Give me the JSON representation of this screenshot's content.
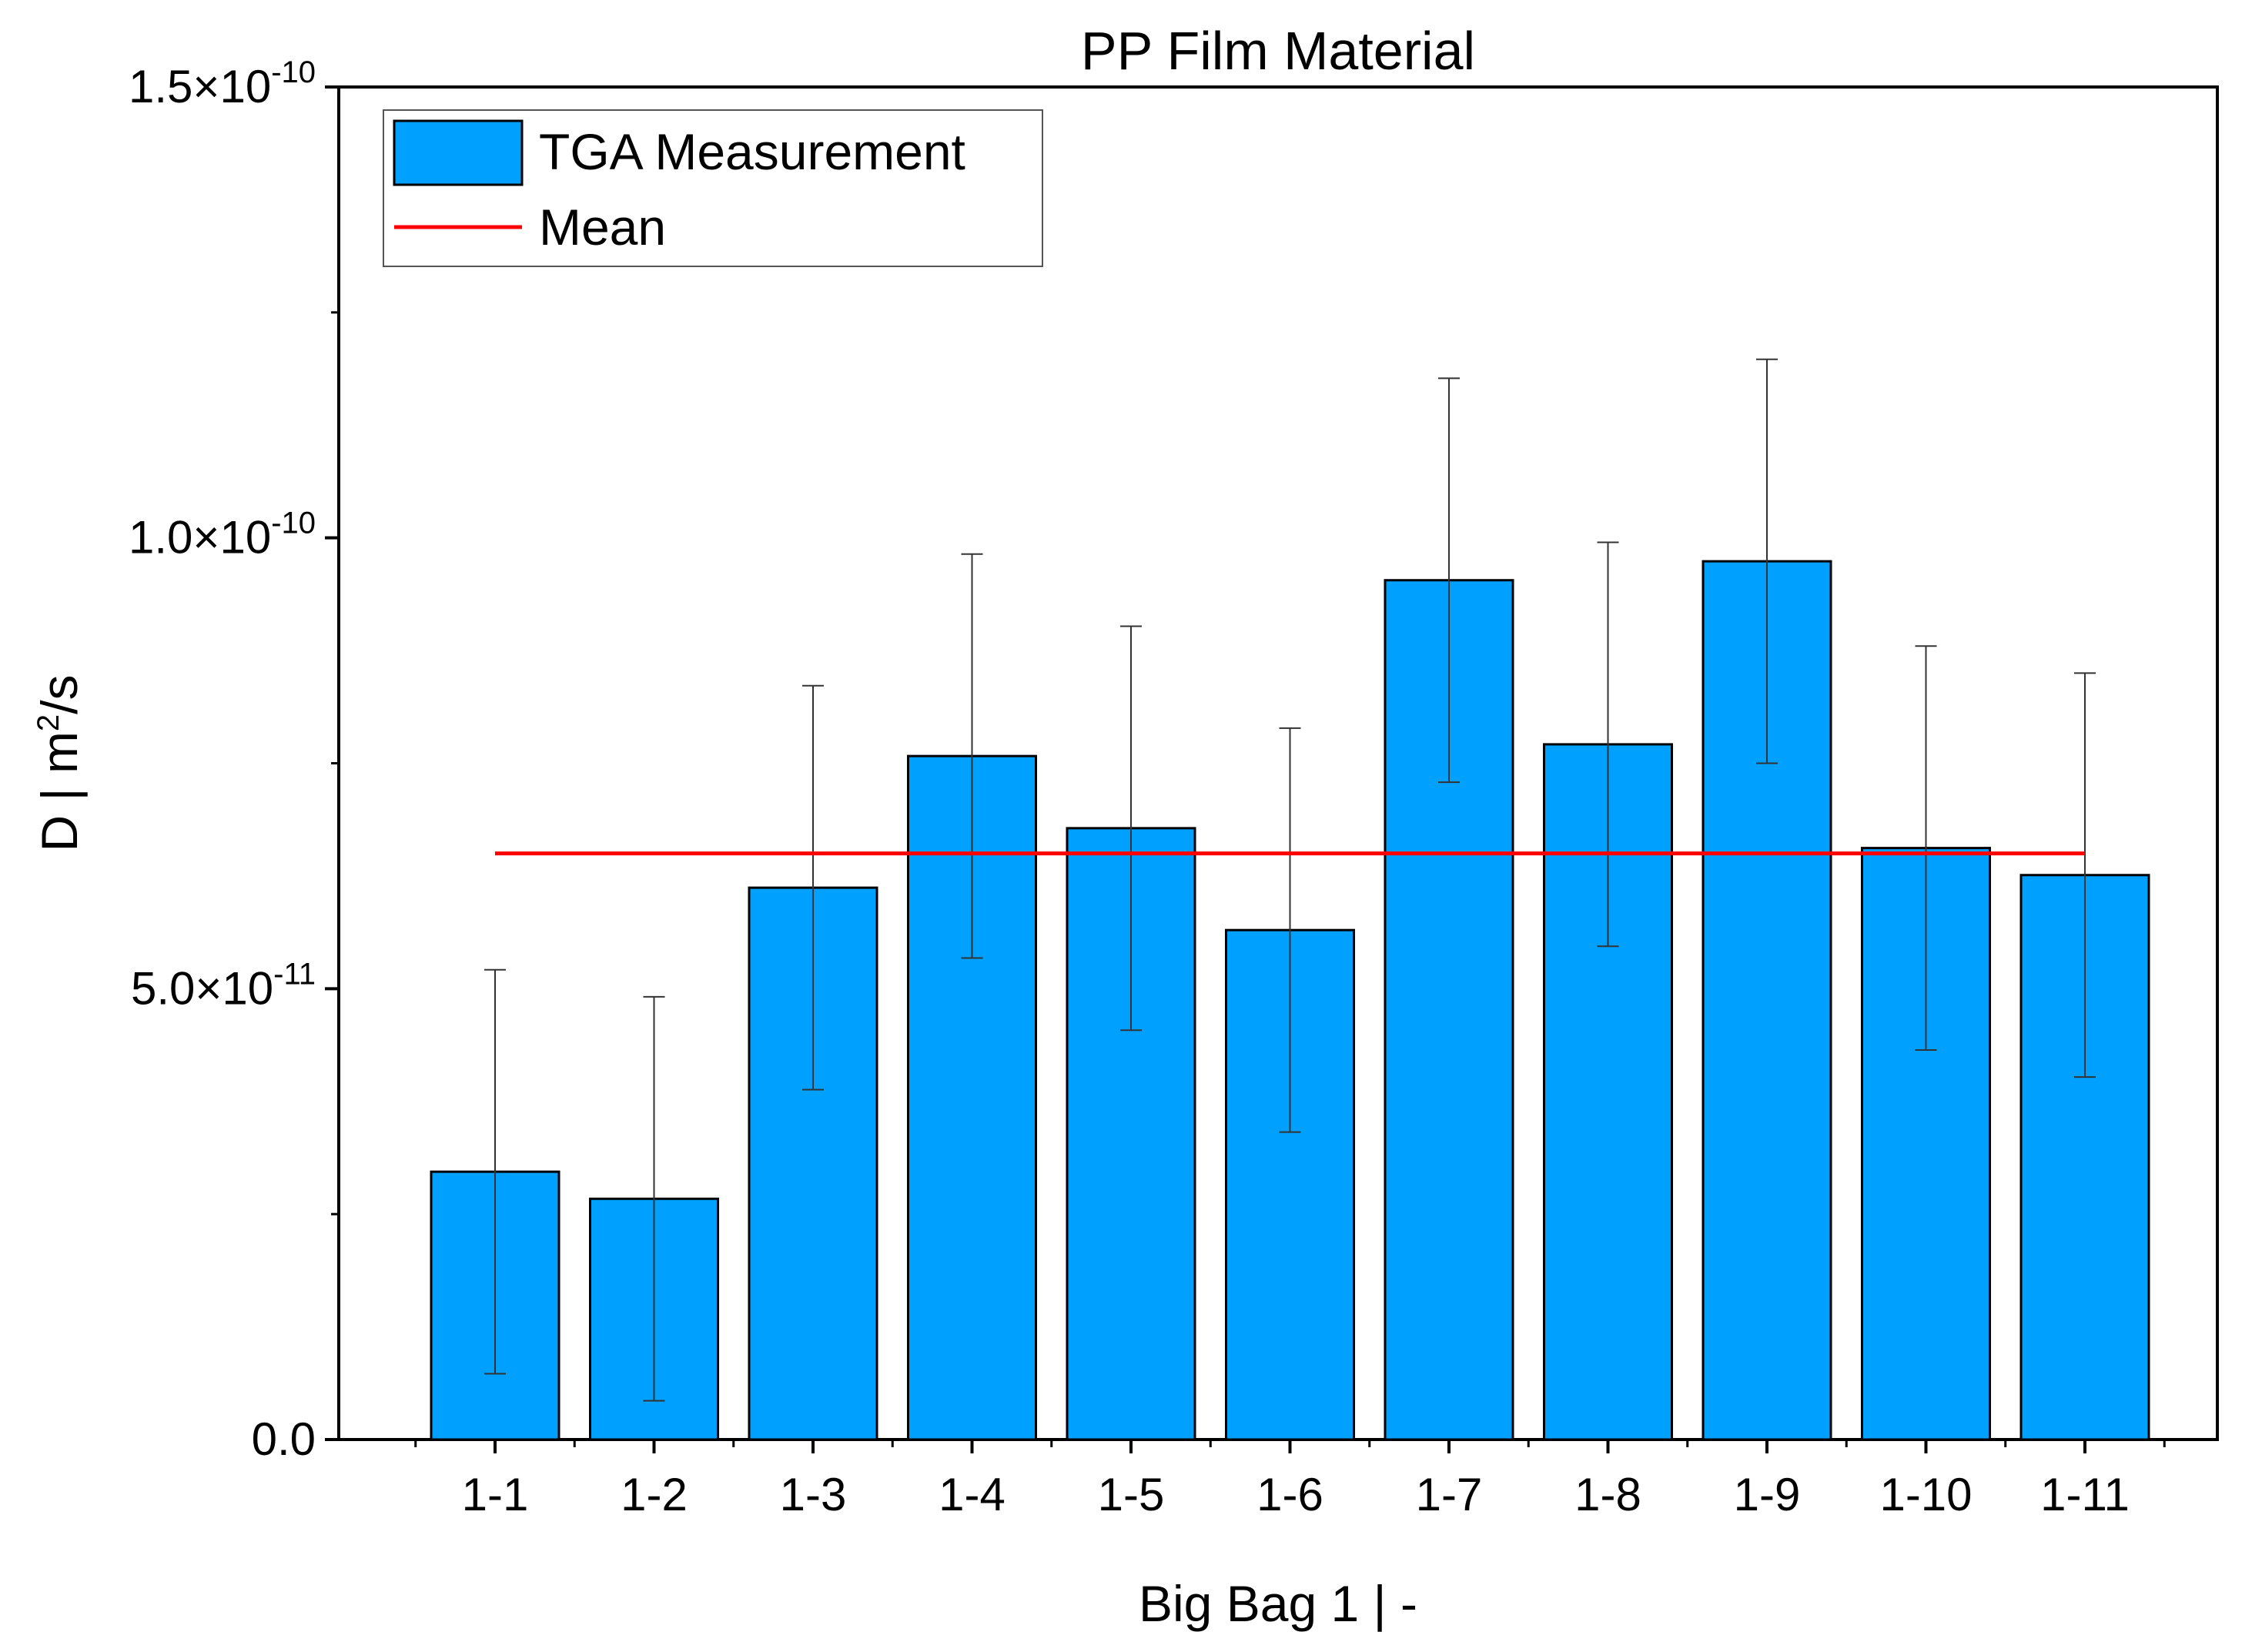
{
  "chart_data": {
    "type": "bar",
    "title": "PP Film Material",
    "xlabel": "Big Bag 1 | -",
    "ylabel": {
      "prefix": "D | m",
      "sup": "2",
      "suffix": "/s"
    },
    "categories": [
      "1-1",
      "1-2",
      "1-3",
      "1-4",
      "1-5",
      "1-6",
      "1-7",
      "1-8",
      "1-9",
      "1-10",
      "1-11"
    ],
    "series": [
      {
        "name": "TGA Measurement",
        "values": [
          2.97e-11,
          2.67e-11,
          6.12e-11,
          7.58e-11,
          6.78e-11,
          5.65e-11,
          9.53e-11,
          7.71e-11,
          9.74e-11,
          6.56e-11,
          6.26e-11
        ],
        "errors": [
          2.24e-11,
          2.24e-11,
          2.24e-11,
          2.24e-11,
          2.24e-11,
          2.24e-11,
          2.24e-11,
          2.24e-11,
          2.24e-11,
          2.24e-11,
          2.24e-11
        ],
        "color": "#00a0ff"
      }
    ],
    "mean": {
      "name": "Mean",
      "value": 6.5e-11,
      "color": "#ff0000"
    },
    "ylim": [
      0,
      1.5e-10
    ],
    "yticks": [
      {
        "value": 0,
        "mantissa": "0.0",
        "exp": ""
      },
      {
        "value": 5e-11,
        "mantissa": "5.0×10",
        "exp": "-11"
      },
      {
        "value": 1e-10,
        "mantissa": "1.0×10",
        "exp": "-10"
      },
      {
        "value": 1.5e-10,
        "mantissa": "1.5×10",
        "exp": "-10"
      }
    ],
    "legend": {
      "position": "top-left"
    },
    "grid": false
  }
}
